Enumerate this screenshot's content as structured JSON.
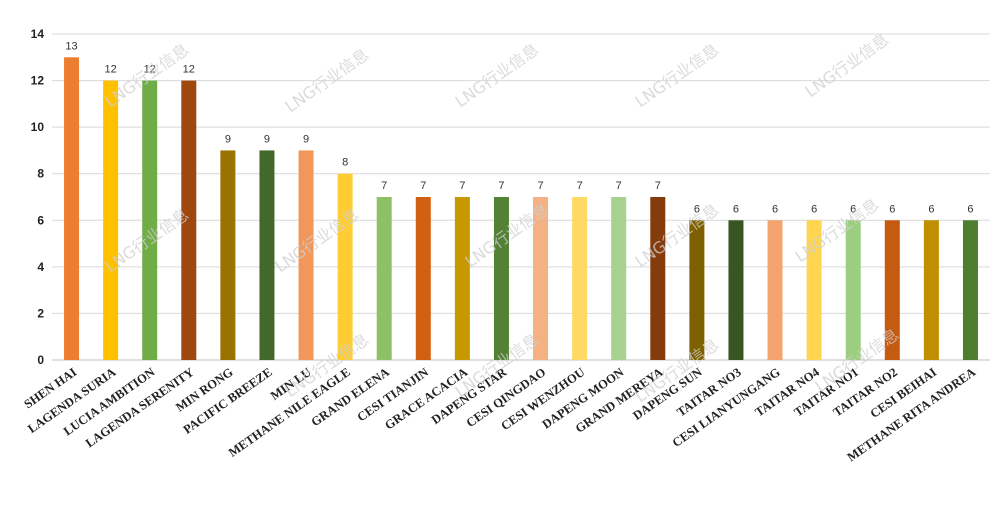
{
  "chart_data": {
    "type": "bar",
    "title": "",
    "xlabel": "",
    "ylabel": "",
    "ylim": [
      0,
      14
    ],
    "yticks": [
      0,
      2,
      4,
      6,
      8,
      10,
      12,
      14
    ],
    "grid": true,
    "legend": "none",
    "categories": [
      "SHEN HAI",
      "LAGENDA SURIA",
      "LUCIA AMBITION",
      "LAGENDA SERENITY",
      "MIN RONG",
      "PACIFIC BREEZE",
      "MIN LU",
      "METHANE NILE EAGLE",
      "GRAND ELENA",
      "CESI TIANJIN",
      "GRACE ACACIA",
      "DAPENG STAR",
      "CESI QINGDAO",
      "CESI WENZHOU",
      "DAPENG MOON",
      "GRAND MEREYA",
      "DAPENG SUN",
      "TAITAR NO3",
      "CESI LIANYUNGANG",
      "TAITAR NO4",
      "TAITAR NO1",
      "TAITAR NO2",
      "CESI BEIHAI",
      "METHANE RITA ANDREA"
    ],
    "values": [
      13,
      12,
      12,
      12,
      9,
      9,
      9,
      8,
      7,
      7,
      7,
      7,
      7,
      7,
      7,
      7,
      6,
      6,
      6,
      6,
      6,
      6,
      6,
      6
    ],
    "colors": [
      "#ED7D31",
      "#FFC000",
      "#70AD47",
      "#9E480E",
      "#997300",
      "#43682B",
      "#F1975A",
      "#FFCD33",
      "#8CC168",
      "#D26012",
      "#C89800",
      "#548235",
      "#F4B183",
      "#FFD966",
      "#A9D18E",
      "#843C0C",
      "#7F6000",
      "#375623",
      "#F4A46F",
      "#FFD54F",
      "#9BCF7F",
      "#C55A11",
      "#BF8F00",
      "#4E7D2F"
    ]
  },
  "watermark": "LNG行业信息"
}
